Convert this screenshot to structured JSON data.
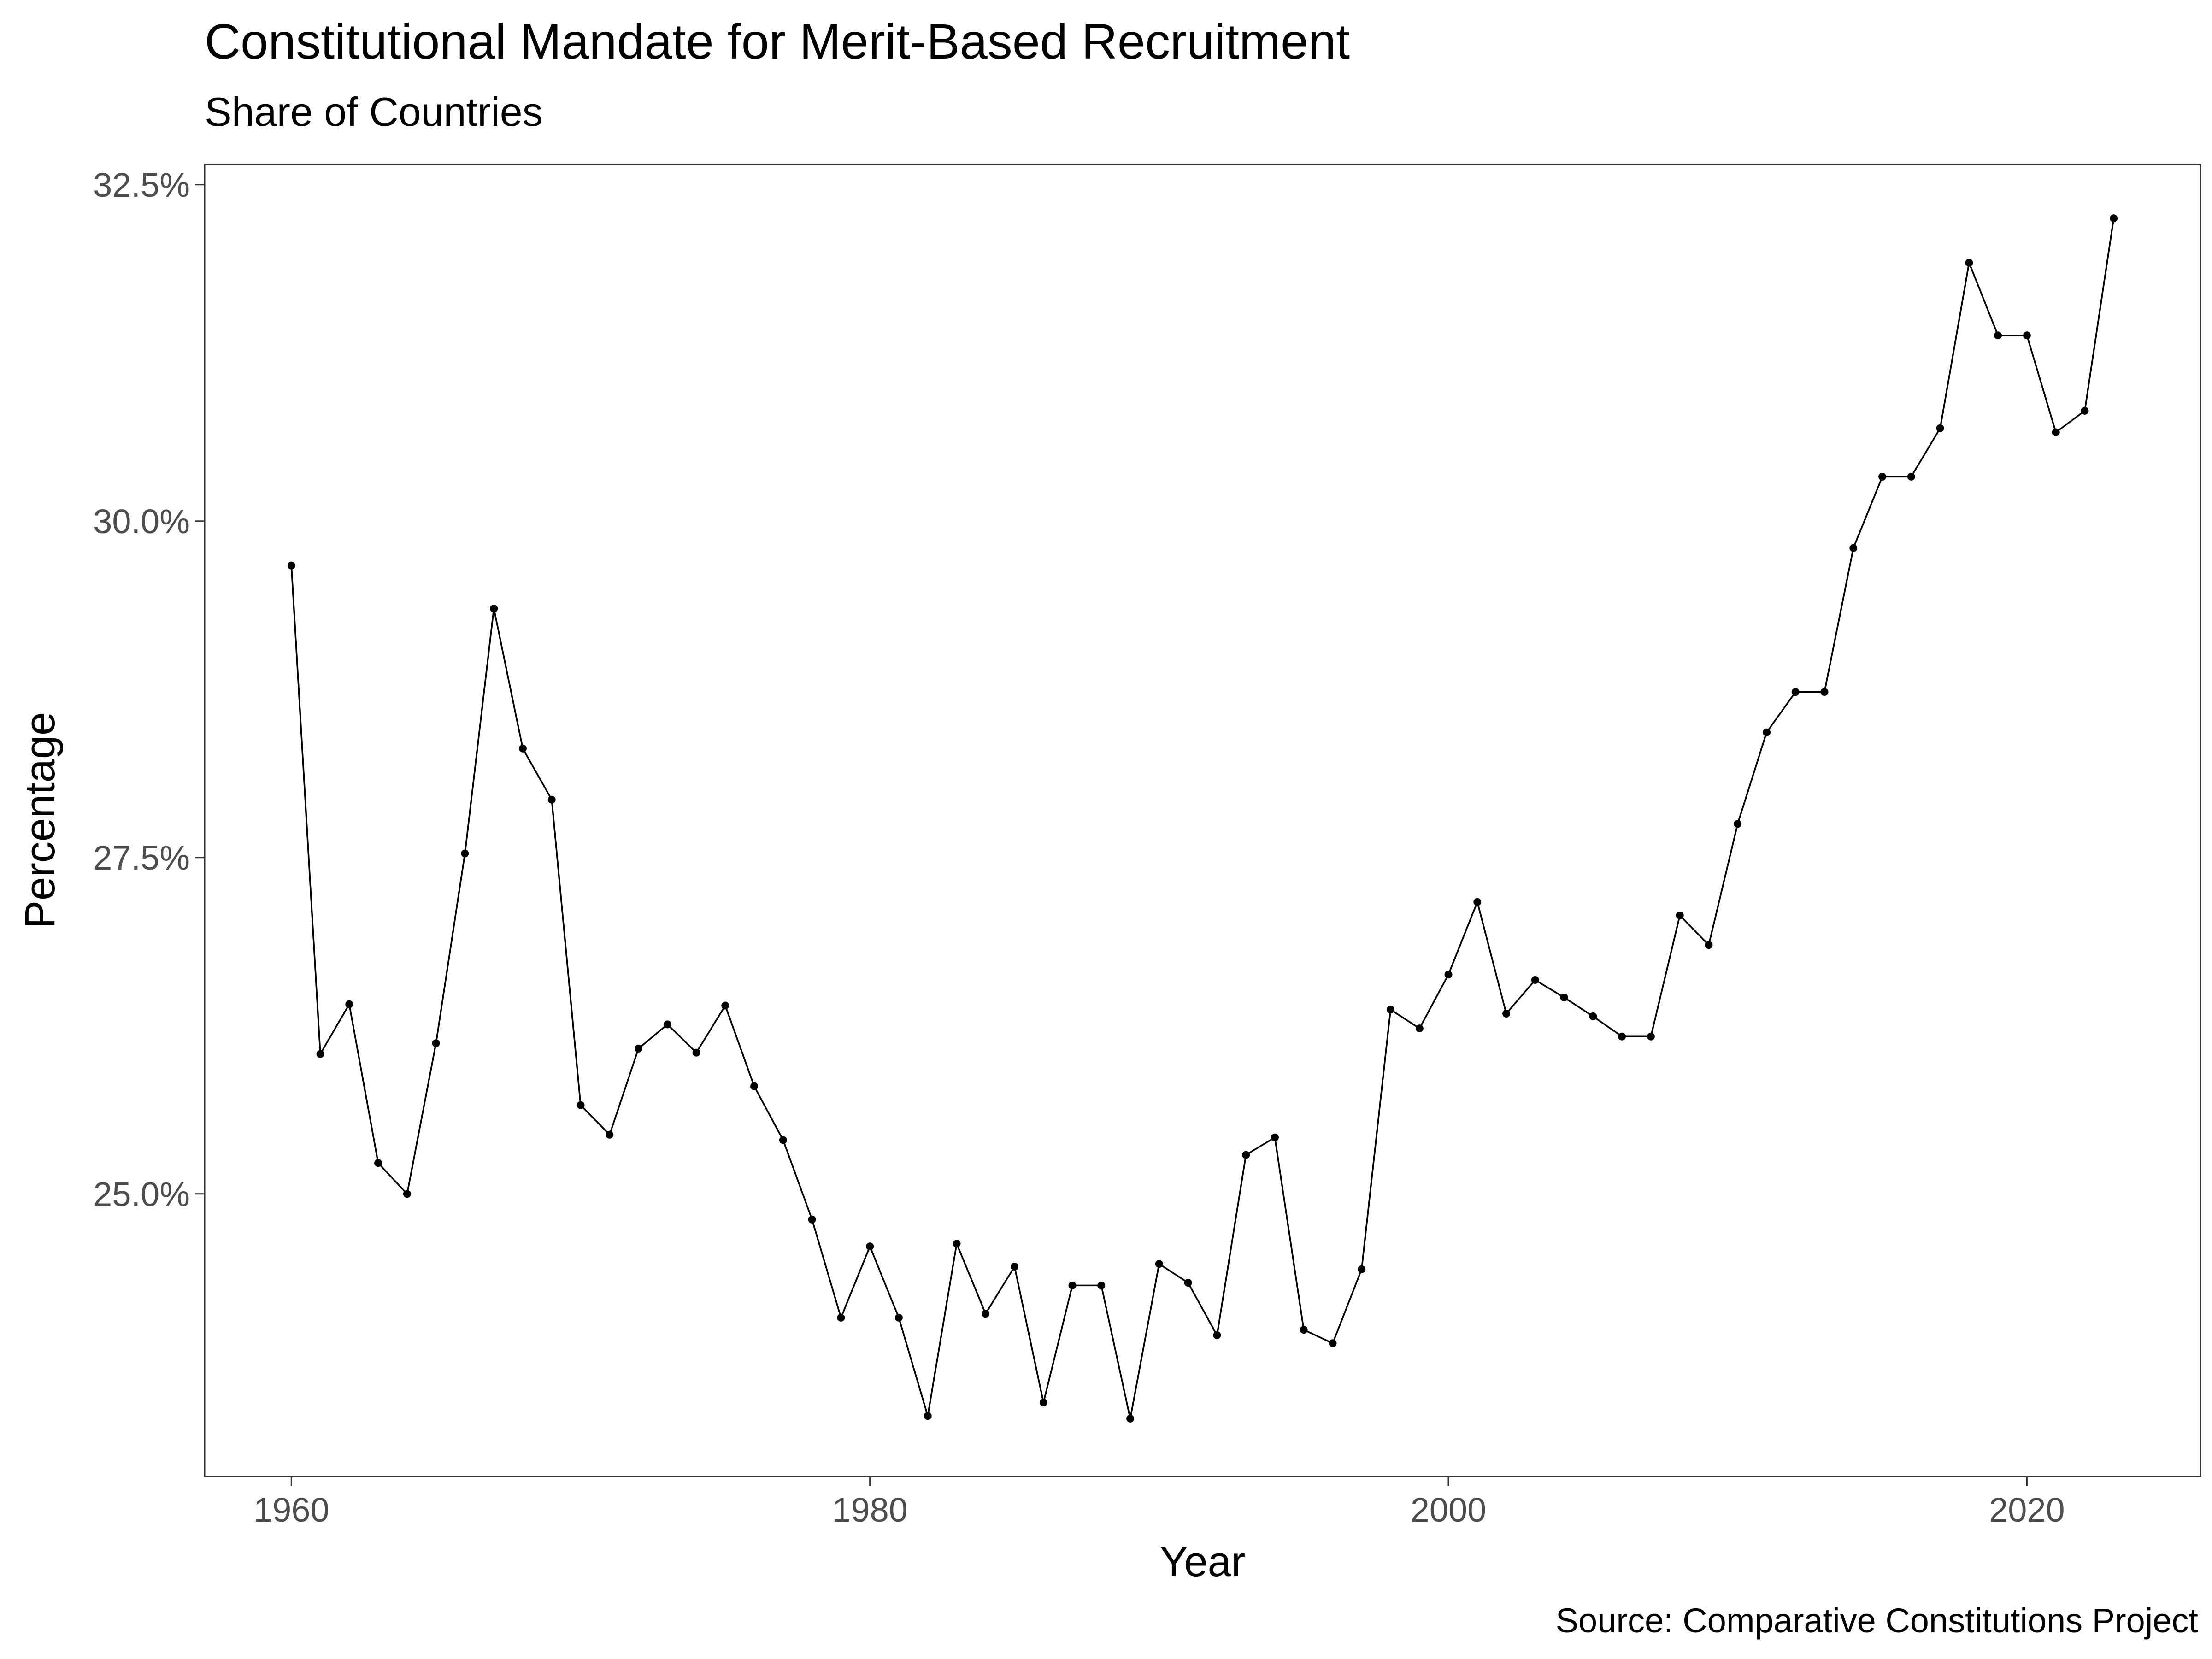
{
  "chart_data": {
    "type": "line",
    "title": "Constitutional Mandate for Merit-Based Recruitment",
    "subtitle": "Share of Countries",
    "xlabel": "Year",
    "ylabel": "Percentage",
    "caption": "Source: Comparative Constitutions Project",
    "xlim": [
      1957,
      2026
    ],
    "ylim": [
      22.9,
      32.65
    ],
    "x_ticks": [
      {
        "value": 1960,
        "label": "1960"
      },
      {
        "value": 1980,
        "label": "1980"
      },
      {
        "value": 2000,
        "label": "2000"
      },
      {
        "value": 2020,
        "label": "2020"
      }
    ],
    "y_ticks": [
      {
        "value": 25.0,
        "label": "25.0%"
      },
      {
        "value": 27.5,
        "label": "27.5%"
      },
      {
        "value": 30.0,
        "label": "30.0%"
      },
      {
        "value": 32.5,
        "label": "32.5%"
      }
    ],
    "grid": false,
    "line_color": "#000000",
    "series": [
      {
        "x": [
          1960,
          1961,
          1962,
          1963,
          1964,
          1965,
          1966,
          1967,
          1968,
          1969,
          1970,
          1971,
          1972,
          1973,
          1974,
          1975,
          1976,
          1977,
          1978,
          1979,
          1980,
          1981,
          1982,
          1983,
          1984,
          1985,
          1986,
          1987,
          1988,
          1989,
          1990,
          1991,
          1992,
          1993,
          1994,
          1995,
          1996,
          1997,
          1998,
          1999,
          2000,
          2001,
          2002,
          2003,
          2004,
          2005,
          2006,
          2007,
          2008,
          2009,
          2010,
          2011,
          2012,
          2013,
          2014,
          2015,
          2016,
          2017,
          2018,
          2019,
          2020,
          2021,
          2022,
          2023
        ],
        "values": [
          29.67,
          26.04,
          26.41,
          25.23,
          25.0,
          26.12,
          27.53,
          29.35,
          28.31,
          27.93,
          25.66,
          25.44,
          26.08,
          26.26,
          26.05,
          26.4,
          25.8,
          25.4,
          24.81,
          24.08,
          24.61,
          24.08,
          23.35,
          24.63,
          24.11,
          24.46,
          23.45,
          24.32,
          24.32,
          23.33,
          24.48,
          24.34,
          23.95,
          25.29,
          25.42,
          23.99,
          23.89,
          24.44,
          26.37,
          26.23,
          26.63,
          27.17,
          26.34,
          26.59,
          26.46,
          26.32,
          26.17,
          26.17,
          27.07,
          26.85,
          27.75,
          28.43,
          28.73,
          28.73,
          29.8,
          30.33,
          30.33,
          30.69,
          31.92,
          31.38,
          31.38,
          30.66,
          30.82,
          32.25
        ]
      }
    ]
  }
}
